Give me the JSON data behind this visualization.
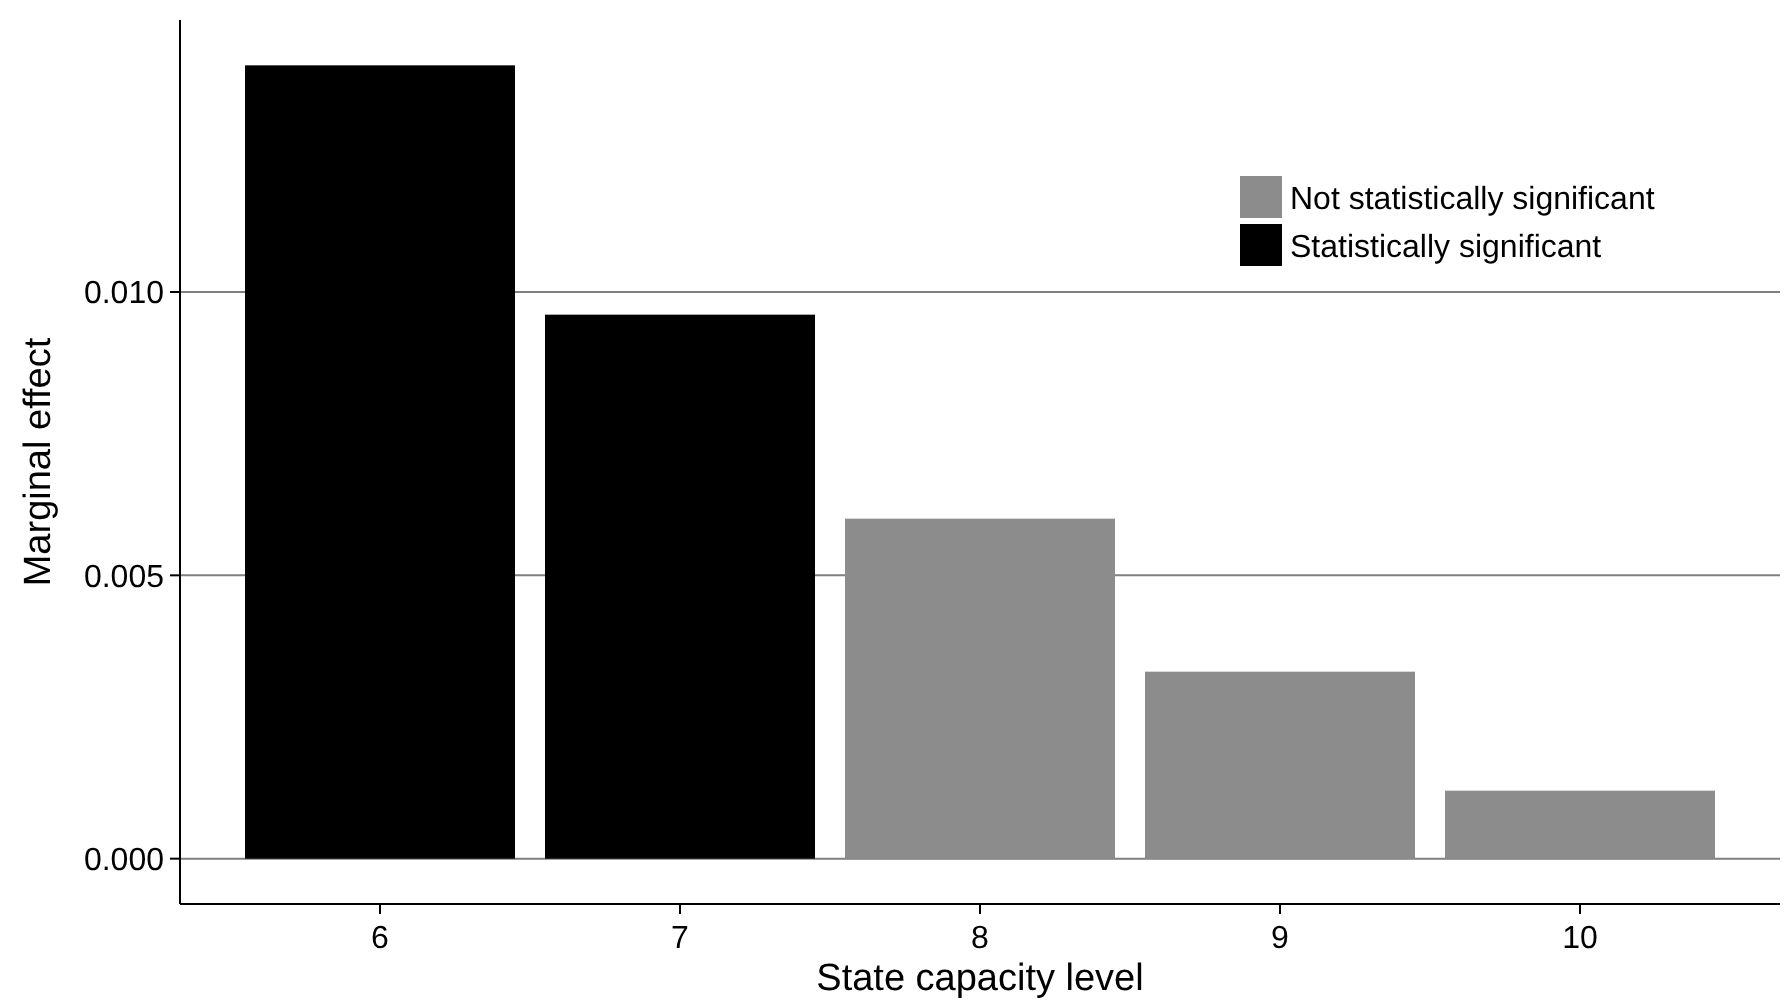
{
  "chart_data": {
    "type": "bar",
    "xlabel": "State capacity level",
    "ylabel": "Marginal effect",
    "categories": [
      "6",
      "7",
      "8",
      "9",
      "10"
    ],
    "series": [
      {
        "name": "Not statistically significant",
        "color": "#8c8c8c",
        "values": [
          null,
          null,
          0.006,
          0.0033,
          0.0012
        ]
      },
      {
        "name": "Statistically significant",
        "color": "#000000",
        "values": [
          0.014,
          0.0096,
          null,
          null,
          null
        ]
      }
    ],
    "ylim": [
      -0.0008,
      0.0148
    ],
    "yticks": [
      {
        "value": 0,
        "label": "0.000"
      },
      {
        "value": 0.005,
        "label": "0.005"
      },
      {
        "value": 0.01,
        "label": "0.010"
      }
    ],
    "grid": "y",
    "legend": "top right"
  }
}
